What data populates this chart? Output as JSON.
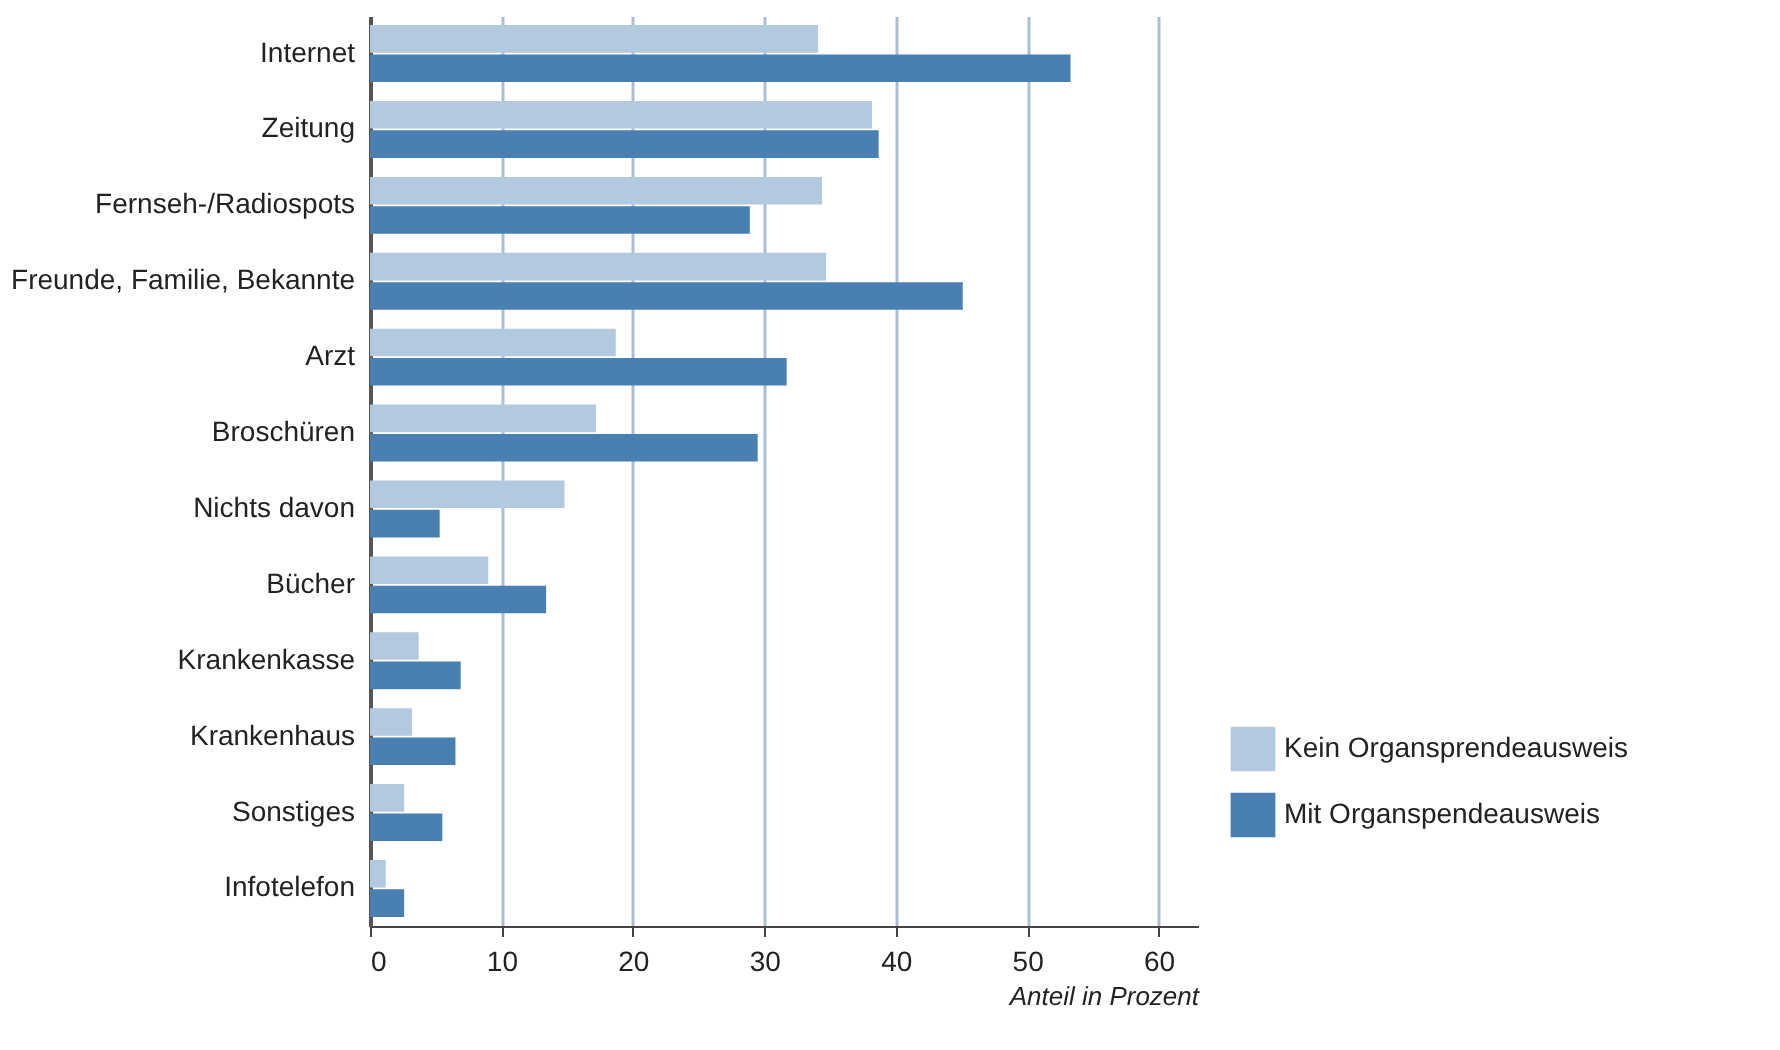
{
  "chart_data": {
    "type": "bar",
    "orientation": "horizontal",
    "xlabel": "Anteil in Prozent",
    "categories": [
      "Internet",
      "Zeitung",
      "Fernseh-/Radiospots",
      "Freunde, Familie, Bekannte",
      "Arzt",
      "Broschüren",
      "Nichts davon",
      "Bücher",
      "Krankenkasse",
      "Krankenhaus",
      "Sonstiges",
      "Infotelefon"
    ],
    "series": [
      {
        "name": "Kein Organsprendeausweis",
        "color": "#b3c9e0",
        "values": [
          34.1,
          38.2,
          34.4,
          34.7,
          18.7,
          17.2,
          14.8,
          9.0,
          3.7,
          3.2,
          2.6,
          1.2
        ]
      },
      {
        "name": "Mit Organspendeausweis",
        "color": "#4a7fb2",
        "values": [
          53.3,
          38.7,
          28.9,
          45.1,
          31.7,
          29.5,
          5.3,
          13.4,
          6.9,
          6.5,
          5.5,
          2.6
        ]
      }
    ],
    "xlim": [
      0,
      63
    ],
    "xticks": [
      0,
      10,
      20,
      30,
      40,
      50,
      60
    ],
    "grid": "x",
    "legend": "right"
  }
}
